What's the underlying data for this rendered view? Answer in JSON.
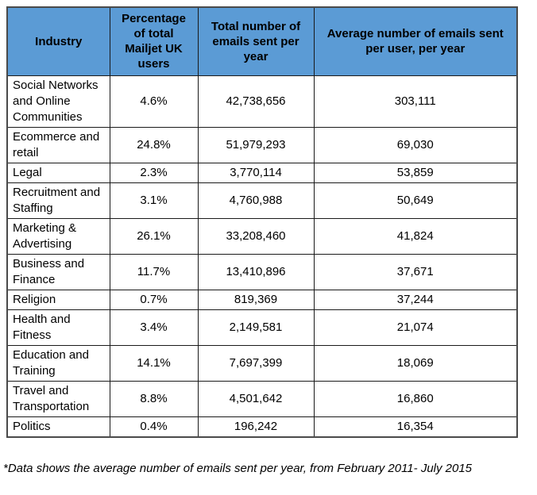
{
  "colors": {
    "header_bg": "#5B9BD5",
    "border_inner": "#1a1a1a",
    "border_outer": "#4a4a4a",
    "text": "#000000"
  },
  "chart_data": {
    "type": "table",
    "title": "",
    "columns": [
      "Industry",
      "Percentage of total Mailjet UK users",
      "Total number of emails sent per year",
      "Average number of emails sent per user, per year"
    ],
    "rows": [
      {
        "industry": "Social Networks and Online Communities",
        "percentage": "4.6%",
        "total_emails": "42,738,656",
        "average_emails": "303,111"
      },
      {
        "industry": "Ecommerce and retail",
        "percentage": "24.8%",
        "total_emails": "51,979,293",
        "average_emails": "69,030"
      },
      {
        "industry": "Legal",
        "percentage": "2.3%",
        "total_emails": "3,770,114",
        "average_emails": "53,859"
      },
      {
        "industry": "Recruitment and Staffing",
        "percentage": "3.1%",
        "total_emails": "4,760,988",
        "average_emails": "50,649"
      },
      {
        "industry": "Marketing & Advertising",
        "percentage": "26.1%",
        "total_emails": "33,208,460",
        "average_emails": "41,824"
      },
      {
        "industry": "Business and Finance",
        "percentage": "11.7%",
        "total_emails": "13,410,896",
        "average_emails": "37,671"
      },
      {
        "industry": "Religion",
        "percentage": "0.7%",
        "total_emails": "819,369",
        "average_emails": "37,244"
      },
      {
        "industry": "Health and Fitness",
        "percentage": "3.4%",
        "total_emails": "2,149,581",
        "average_emails": "21,074"
      },
      {
        "industry": "Education and Training",
        "percentage": "14.1%",
        "total_emails": "7,697,399",
        "average_emails": "18,069"
      },
      {
        "industry": "Travel and Transportation",
        "percentage": "8.8%",
        "total_emails": "4,501,642",
        "average_emails": "16,860"
      },
      {
        "industry": "Politics",
        "percentage": "0.4%",
        "total_emails": "196,242",
        "average_emails": "16,354"
      }
    ]
  },
  "footnote": "*Data shows the average number of emails sent per year, from February 2011- July 2015"
}
